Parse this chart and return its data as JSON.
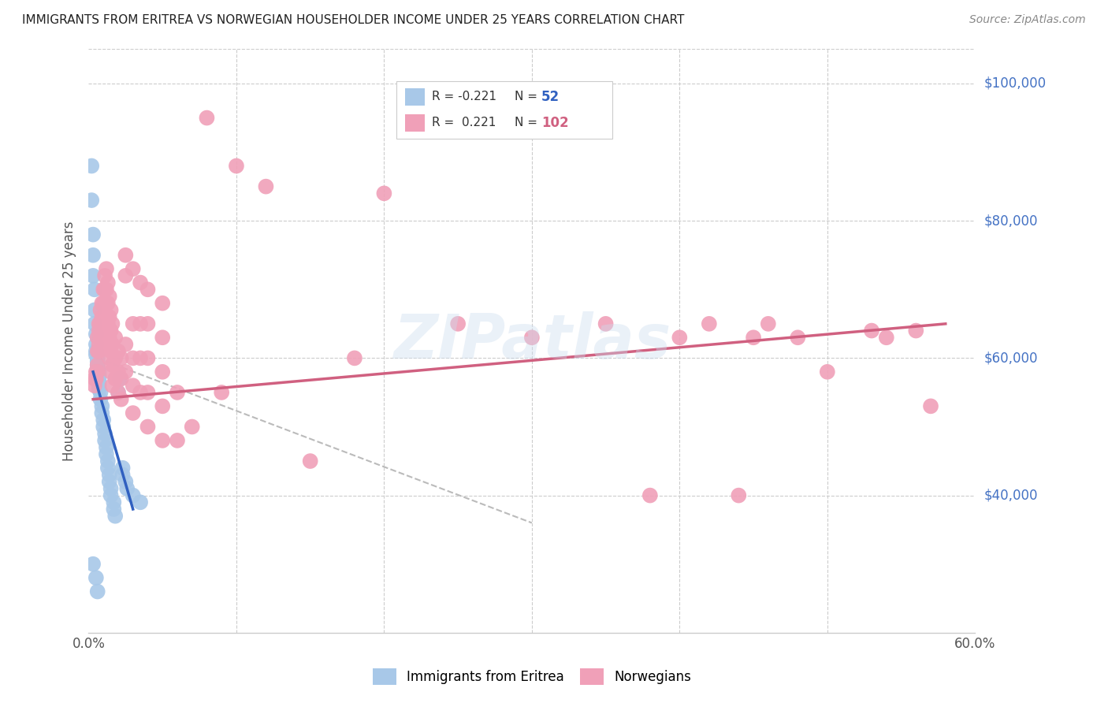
{
  "title": "IMMIGRANTS FROM ERITREA VS NORWEGIAN HOUSEHOLDER INCOME UNDER 25 YEARS CORRELATION CHART",
  "source": "Source: ZipAtlas.com",
  "ylabel": "Householder Income Under 25 years",
  "xlim": [
    0.0,
    0.6
  ],
  "ylim": [
    20000,
    105000
  ],
  "yticks": [
    40000,
    60000,
    80000,
    100000
  ],
  "ytick_labels": [
    "$40,000",
    "$60,000",
    "$80,000",
    "$100,000"
  ],
  "color_blue": "#A8C8E8",
  "color_pink": "#F0A0B8",
  "trendline_blue": "#3060C0",
  "trendline_pink": "#D06080",
  "trendline_dashed": "#BBBBBB",
  "background": "#FFFFFF",
  "grid_color": "#CCCCCC",
  "title_color": "#222222",
  "right_label_color": "#4472C4",
  "blue_scatter": [
    [
      0.002,
      88000
    ],
    [
      0.002,
      83000
    ],
    [
      0.003,
      78000
    ],
    [
      0.003,
      75000
    ],
    [
      0.003,
      72000
    ],
    [
      0.004,
      70000
    ],
    [
      0.004,
      67000
    ],
    [
      0.004,
      65000
    ],
    [
      0.005,
      63500
    ],
    [
      0.005,
      62000
    ],
    [
      0.005,
      61000
    ],
    [
      0.005,
      60500
    ],
    [
      0.006,
      60000
    ],
    [
      0.006,
      59500
    ],
    [
      0.006,
      59000
    ],
    [
      0.006,
      58500
    ],
    [
      0.007,
      58000
    ],
    [
      0.007,
      57500
    ],
    [
      0.007,
      57000
    ],
    [
      0.007,
      56500
    ],
    [
      0.007,
      56000
    ],
    [
      0.007,
      55500
    ],
    [
      0.008,
      55000
    ],
    [
      0.008,
      54000
    ],
    [
      0.009,
      53000
    ],
    [
      0.009,
      52000
    ],
    [
      0.01,
      51000
    ],
    [
      0.01,
      50000
    ],
    [
      0.011,
      49000
    ],
    [
      0.011,
      48000
    ],
    [
      0.012,
      47000
    ],
    [
      0.012,
      46000
    ],
    [
      0.013,
      45000
    ],
    [
      0.013,
      44000
    ],
    [
      0.014,
      43000
    ],
    [
      0.014,
      42000
    ],
    [
      0.015,
      41000
    ],
    [
      0.015,
      40000
    ],
    [
      0.017,
      39000
    ],
    [
      0.017,
      38000
    ],
    [
      0.018,
      37000
    ],
    [
      0.02,
      55000
    ],
    [
      0.021,
      57000
    ],
    [
      0.023,
      44000
    ],
    [
      0.023,
      43000
    ],
    [
      0.025,
      42000
    ],
    [
      0.026,
      41000
    ],
    [
      0.03,
      40000
    ],
    [
      0.035,
      39000
    ],
    [
      0.003,
      30000
    ],
    [
      0.005,
      28000
    ],
    [
      0.006,
      26000
    ]
  ],
  "pink_scatter": [
    [
      0.004,
      57000
    ],
    [
      0.004,
      56000
    ],
    [
      0.005,
      58000
    ],
    [
      0.005,
      57000
    ],
    [
      0.006,
      63000
    ],
    [
      0.006,
      61000
    ],
    [
      0.006,
      59000
    ],
    [
      0.006,
      58000
    ],
    [
      0.007,
      65000
    ],
    [
      0.007,
      64000
    ],
    [
      0.007,
      62000
    ],
    [
      0.007,
      61000
    ],
    [
      0.008,
      67000
    ],
    [
      0.008,
      65000
    ],
    [
      0.008,
      63000
    ],
    [
      0.009,
      68000
    ],
    [
      0.009,
      66000
    ],
    [
      0.009,
      64000
    ],
    [
      0.009,
      62000
    ],
    [
      0.01,
      70000
    ],
    [
      0.01,
      68000
    ],
    [
      0.01,
      66000
    ],
    [
      0.01,
      64000
    ],
    [
      0.01,
      62000
    ],
    [
      0.011,
      72000
    ],
    [
      0.011,
      70000
    ],
    [
      0.011,
      68000
    ],
    [
      0.011,
      64000
    ],
    [
      0.011,
      62000
    ],
    [
      0.012,
      73000
    ],
    [
      0.012,
      70000
    ],
    [
      0.012,
      68000
    ],
    [
      0.012,
      65000
    ],
    [
      0.012,
      62000
    ],
    [
      0.013,
      71000
    ],
    [
      0.013,
      68000
    ],
    [
      0.013,
      65000
    ],
    [
      0.013,
      62000
    ],
    [
      0.014,
      69000
    ],
    [
      0.014,
      66000
    ],
    [
      0.014,
      63000
    ],
    [
      0.014,
      60000
    ],
    [
      0.015,
      67000
    ],
    [
      0.015,
      64000
    ],
    [
      0.015,
      61000
    ],
    [
      0.015,
      58000
    ],
    [
      0.016,
      65000
    ],
    [
      0.016,
      62000
    ],
    [
      0.016,
      59000
    ],
    [
      0.016,
      56000
    ],
    [
      0.018,
      63000
    ],
    [
      0.018,
      60000
    ],
    [
      0.018,
      57000
    ],
    [
      0.02,
      61000
    ],
    [
      0.02,
      58000
    ],
    [
      0.02,
      55000
    ],
    [
      0.022,
      60000
    ],
    [
      0.022,
      57000
    ],
    [
      0.022,
      54000
    ],
    [
      0.025,
      75000
    ],
    [
      0.025,
      72000
    ],
    [
      0.025,
      62000
    ],
    [
      0.025,
      58000
    ],
    [
      0.03,
      73000
    ],
    [
      0.03,
      65000
    ],
    [
      0.03,
      60000
    ],
    [
      0.03,
      56000
    ],
    [
      0.03,
      52000
    ],
    [
      0.035,
      71000
    ],
    [
      0.035,
      65000
    ],
    [
      0.035,
      60000
    ],
    [
      0.035,
      55000
    ],
    [
      0.04,
      70000
    ],
    [
      0.04,
      65000
    ],
    [
      0.04,
      60000
    ],
    [
      0.04,
      55000
    ],
    [
      0.04,
      50000
    ],
    [
      0.05,
      68000
    ],
    [
      0.05,
      63000
    ],
    [
      0.05,
      58000
    ],
    [
      0.05,
      53000
    ],
    [
      0.05,
      48000
    ],
    [
      0.06,
      55000
    ],
    [
      0.06,
      48000
    ],
    [
      0.08,
      95000
    ],
    [
      0.1,
      88000
    ],
    [
      0.12,
      85000
    ],
    [
      0.2,
      84000
    ],
    [
      0.25,
      65000
    ],
    [
      0.3,
      63000
    ],
    [
      0.35,
      65000
    ],
    [
      0.4,
      63000
    ],
    [
      0.42,
      65000
    ],
    [
      0.45,
      63000
    ],
    [
      0.46,
      65000
    ],
    [
      0.48,
      63000
    ],
    [
      0.5,
      58000
    ],
    [
      0.53,
      64000
    ],
    [
      0.54,
      63000
    ],
    [
      0.56,
      64000
    ],
    [
      0.07,
      50000
    ],
    [
      0.09,
      55000
    ],
    [
      0.15,
      45000
    ],
    [
      0.18,
      60000
    ],
    [
      0.38,
      40000
    ],
    [
      0.44,
      40000
    ],
    [
      0.57,
      53000
    ]
  ],
  "blue_trend_x": [
    0.003,
    0.03
  ],
  "blue_trend_y": [
    58000,
    38000
  ],
  "pink_trend_x": [
    0.003,
    0.58
  ],
  "pink_trend_y": [
    54000,
    65000
  ],
  "dashed_trend_x": [
    0.006,
    0.3
  ],
  "dashed_trend_y": [
    60000,
    36000
  ]
}
